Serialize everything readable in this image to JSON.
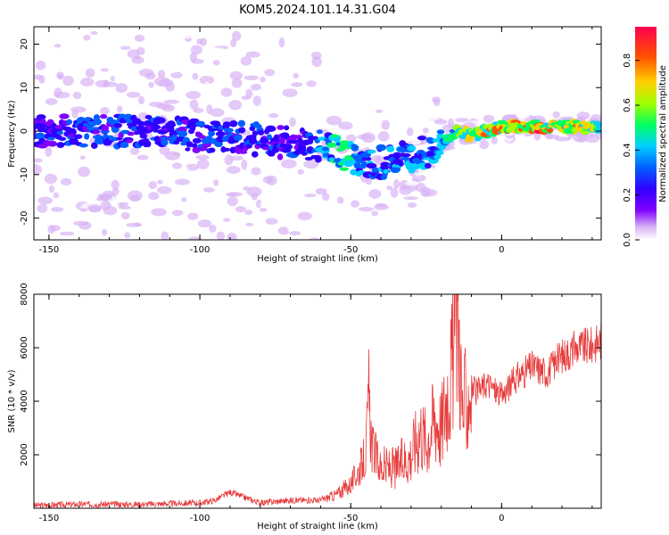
{
  "figure": {
    "title": "KOM5.2024.101.14.31.G04"
  },
  "colors": {
    "snr_line": "#e63b3b",
    "axis": "#000000",
    "colormap": [
      "#ffffff",
      "#d9b3f5",
      "#8000ff",
      "#3000ff",
      "#0060ff",
      "#00d0ff",
      "#00ff60",
      "#a0ff00",
      "#ffd000",
      "#ff5000",
      "#ff0050"
    ]
  },
  "chart_data": [
    {
      "type": "heatmap",
      "xlabel": "Height of straight line (km)",
      "ylabel": "Frequency (Hz)",
      "xlim": [
        -155,
        33
      ],
      "ylim": [
        -25,
        24
      ],
      "xticks": [
        -150,
        -100,
        -50,
        0
      ],
      "yticks": [
        -20,
        -10,
        0,
        10,
        20
      ],
      "colorbar": {
        "label": "Normalized spectral amplitude",
        "range": [
          0,
          0.95
        ],
        "ticks": [
          "0.0",
          "0.2",
          "0.4",
          "0.6",
          "0.8"
        ]
      },
      "ridge": {
        "description_points_x": [
          -155,
          -140,
          -120,
          -100,
          -80,
          -65,
          -58,
          -50,
          -45,
          -38,
          -30,
          -22,
          -15,
          -10,
          -5,
          0,
          10,
          20,
          33
        ],
        "frequency_hz": [
          0,
          0,
          0,
          -1,
          -2,
          -3,
          -4,
          -6,
          -8,
          -7,
          -6,
          -4,
          0,
          -1,
          0,
          1,
          1,
          1,
          1
        ],
        "amplitude": [
          0.3,
          0.35,
          0.35,
          0.35,
          0.35,
          0.3,
          0.5,
          0.55,
          0.45,
          0.4,
          0.45,
          0.5,
          0.6,
          0.75,
          0.8,
          0.85,
          0.85,
          0.8,
          0.75
        ]
      }
    },
    {
      "type": "line",
      "xlabel": "Height of straight line (km)",
      "ylabel": "SNR (10 * v/v)",
      "xlim": [
        -155,
        33
      ],
      "ylim": [
        0,
        8000
      ],
      "xticks": [
        -150,
        -100,
        -50,
        0
      ],
      "yticks": [
        2000,
        4000,
        6000,
        8000
      ],
      "series": [
        {
          "x": [
            -155,
            -140,
            -120,
            -100,
            -95,
            -90,
            -80,
            -70,
            -60,
            -55,
            -50,
            -47,
            -45,
            -44,
            -43,
            -40,
            -35,
            -30,
            -27,
            -25,
            -22,
            -20,
            -18,
            -16,
            -15,
            -14,
            -13,
            -12,
            -10,
            -8,
            -5,
            0,
            5,
            10,
            15,
            20,
            25,
            30,
            33
          ],
          "values": [
            100,
            150,
            150,
            200,
            300,
            600,
            200,
            300,
            300,
            500,
            900,
            1500,
            2000,
            4200,
            2300,
            1500,
            1500,
            2000,
            3000,
            2500,
            3500,
            3000,
            4500,
            5500,
            8000,
            6500,
            3500,
            4000,
            4500,
            4300,
            4700,
            4200,
            4900,
            5300,
            5100,
            5700,
            6000,
            6100,
            6300
          ]
        }
      ]
    }
  ]
}
